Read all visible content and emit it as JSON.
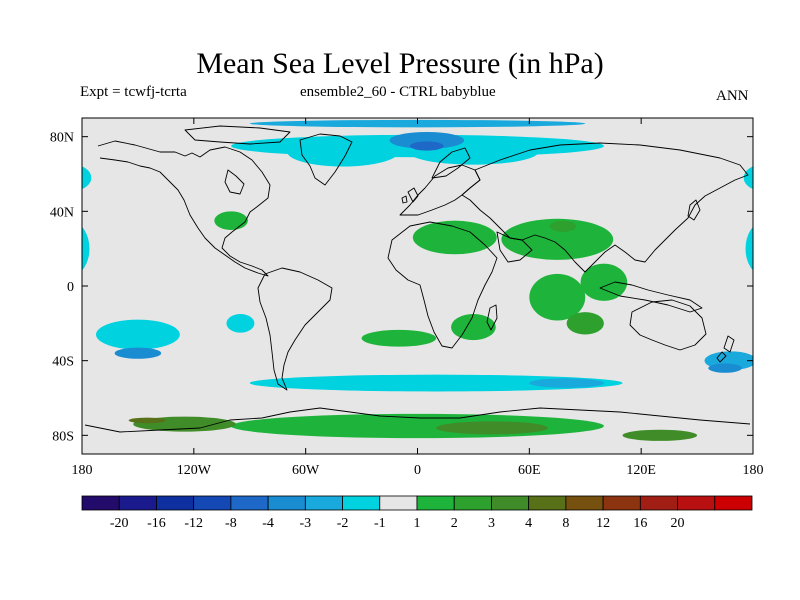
{
  "title": "Mean Sea Level Pressure (in hPa)",
  "subtitle_left": "Expt = tcwfj-tcrta",
  "subtitle_center": "ensemble2_60 - CTRL babyblue",
  "subtitle_right": "ANN",
  "map": {
    "projection": "cylindrical-equidistant",
    "lon_range": [
      -180,
      180
    ],
    "lat_range": [
      -90,
      90
    ],
    "lat_tick_labels": [
      {
        "lat": 80,
        "label": "80N"
      },
      {
        "lat": 40,
        "label": "40N"
      },
      {
        "lat": 0,
        "label": "0"
      },
      {
        "lat": -40,
        "label": "40S"
      },
      {
        "lat": -80,
        "label": "80S"
      }
    ],
    "lon_tick_labels": [
      {
        "lon": -180,
        "label": "180"
      },
      {
        "lon": -120,
        "label": "120W"
      },
      {
        "lon": -60,
        "label": "60W"
      },
      {
        "lon": 0,
        "label": "0"
      },
      {
        "lon": 60,
        "label": "60E"
      },
      {
        "lon": 120,
        "label": "120E"
      },
      {
        "lon": 180,
        "label": "180"
      }
    ]
  },
  "colorbar": {
    "colors": [
      "#230B6B",
      "#1A1A8C",
      "#0D2FA0",
      "#1448B4",
      "#1E68C8",
      "#1A8CD2",
      "#19A9DC",
      "#00D2E0",
      "#E6E6E6",
      "#1EB43C",
      "#2EA02E",
      "#3F8C28",
      "#587018",
      "#76500E",
      "#8C3410",
      "#A01E14",
      "#B81010",
      "#CC0000"
    ],
    "labels": [
      "-20",
      "-16",
      "-12",
      "-8",
      "-4",
      "-3",
      "-2",
      "-1",
      "1",
      "2",
      "3",
      "4",
      "8",
      "12",
      "16",
      "20"
    ]
  },
  "chart_data": {
    "type": "heatmap",
    "title": "Mean Sea Level Pressure (in hPa)",
    "xlim": [
      -180,
      180
    ],
    "ylim": [
      -90,
      90
    ],
    "levels": [
      -20,
      -16,
      -12,
      -8,
      -4,
      -3,
      -2,
      -1,
      1,
      2,
      3,
      4,
      8,
      12,
      16,
      20
    ],
    "background_value": 0,
    "fields": [
      {
        "lon": 0,
        "lat": 87,
        "dlon": 180,
        "dlat": 4,
        "value": -2.5
      },
      {
        "lon": 0,
        "lat": 75,
        "dlon": 200,
        "dlat": 12,
        "value": -1.6
      },
      {
        "lon": -40,
        "lat": 72,
        "dlon": 60,
        "dlat": 16,
        "value": -1.7
      },
      {
        "lon": 30,
        "lat": 72,
        "dlon": 70,
        "dlat": 14,
        "value": -1.8
      },
      {
        "lon": 5,
        "lat": 78,
        "dlon": 40,
        "dlat": 9,
        "value": -3.3
      },
      {
        "lon": 5,
        "lat": 75,
        "dlon": 18,
        "dlat": 5,
        "value": -4.5
      },
      {
        "lon": -185,
        "lat": 20,
        "dlon": 18,
        "dlat": 28,
        "value": -1.5
      },
      {
        "lon": 185,
        "lat": 20,
        "dlon": 18,
        "dlat": 28,
        "value": -1.5
      },
      {
        "lon": -185,
        "lat": 58,
        "dlon": 20,
        "dlat": 14,
        "value": -1.4
      },
      {
        "lon": 185,
        "lat": 58,
        "dlon": 20,
        "dlat": 14,
        "value": -1.4
      },
      {
        "lon": -150,
        "lat": -26,
        "dlon": 45,
        "dlat": 16,
        "value": -1.6
      },
      {
        "lon": -150,
        "lat": -36,
        "dlon": 25,
        "dlat": 6,
        "value": -3.2
      },
      {
        "lon": -95,
        "lat": -20,
        "dlon": 15,
        "dlat": 10,
        "value": -1.4
      },
      {
        "lon": 10,
        "lat": -52,
        "dlon": 200,
        "dlat": 9,
        "value": -1.8
      },
      {
        "lon": 168,
        "lat": -40,
        "dlon": 28,
        "dlat": 10,
        "value": -2.4
      },
      {
        "lon": 165,
        "lat": -44,
        "dlon": 18,
        "dlat": 5,
        "value": -3.4
      },
      {
        "lon": 80,
        "lat": -52,
        "dlon": 40,
        "dlat": 5,
        "value": -2.1
      },
      {
        "lon": 20,
        "lat": 26,
        "dlon": 45,
        "dlat": 18,
        "value": 1.6
      },
      {
        "lon": 75,
        "lat": 25,
        "dlon": 60,
        "dlat": 22,
        "value": 1.7
      },
      {
        "lon": 75,
        "lat": -6,
        "dlon": 30,
        "dlat": 25,
        "value": 1.7
      },
      {
        "lon": 100,
        "lat": 2,
        "dlon": 25,
        "dlat": 20,
        "value": 1.6
      },
      {
        "lon": 90,
        "lat": -20,
        "dlon": 20,
        "dlat": 12,
        "value": 2.6
      },
      {
        "lon": 78,
        "lat": 32,
        "dlon": 14,
        "dlat": 6,
        "value": 2.6
      },
      {
        "lon": -100,
        "lat": 35,
        "dlon": 18,
        "dlat": 10,
        "value": 1.5
      },
      {
        "lon": 30,
        "lat": -22,
        "dlon": 24,
        "dlat": 14,
        "value": 1.5
      },
      {
        "lon": -10,
        "lat": -28,
        "dlon": 40,
        "dlat": 9,
        "value": 1.4
      },
      {
        "lon": 0,
        "lat": -75,
        "dlon": 200,
        "dlat": 13,
        "value": 2.0
      },
      {
        "lon": -125,
        "lat": -74,
        "dlon": 55,
        "dlat": 8,
        "value": 3.3
      },
      {
        "lon": -145,
        "lat": -72,
        "dlon": 20,
        "dlat": 3,
        "value": 5.0
      },
      {
        "lon": 40,
        "lat": -76,
        "dlon": 60,
        "dlat": 7,
        "value": 3.2
      },
      {
        "lon": 130,
        "lat": -80,
        "dlon": 40,
        "dlat": 6,
        "value": 3.3
      }
    ]
  }
}
